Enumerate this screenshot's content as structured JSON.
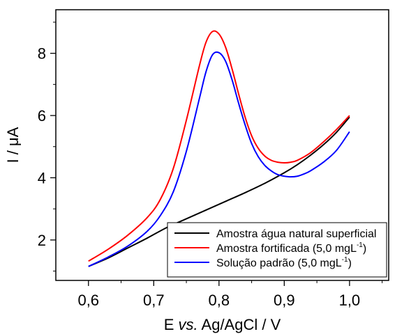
{
  "chart_data": {
    "type": "line",
    "xlabel_parts": [
      "E ",
      "vs.",
      " Ag/AgCl / V"
    ],
    "ylabel_parts": [
      "I / ",
      "μ",
      "A"
    ],
    "xlim": [
      0.55,
      1.06
    ],
    "ylim": [
      0.7,
      9.4
    ],
    "x_ticks": [
      0.6,
      0.7,
      0.8,
      0.9,
      1.0
    ],
    "x_tick_labels": [
      "0,6",
      "0,7",
      "0,8",
      "0,9",
      "1,0"
    ],
    "y_ticks": [
      2,
      4,
      6,
      8
    ],
    "y_tick_labels": [
      "2",
      "4",
      "6",
      "8"
    ],
    "grid": false,
    "legend_position": "bottom-right",
    "series": [
      {
        "name": "Amostra água natural superficial",
        "legend_main": "Amostra água natural superficial",
        "legend_sup": "",
        "legend_tail": "",
        "color": "#000000",
        "x": [
          0.6,
          0.63,
          0.66,
          0.69,
          0.72,
          0.75,
          0.78,
          0.81,
          0.84,
          0.87,
          0.9,
          0.92,
          0.94,
          0.96,
          0.98,
          1.0
        ],
        "y": [
          1.15,
          1.42,
          1.74,
          2.06,
          2.4,
          2.68,
          2.96,
          3.24,
          3.52,
          3.82,
          4.16,
          4.42,
          4.72,
          5.06,
          5.46,
          5.95
        ]
      },
      {
        "name": "Amostra fortificada (5,0 mgL-1)",
        "legend_main": "Amostra fortificada (5,0 mgL",
        "legend_sup": "-1",
        "legend_tail": ")",
        "color": "#ff0000",
        "x": [
          0.6,
          0.63,
          0.66,
          0.69,
          0.71,
          0.73,
          0.75,
          0.77,
          0.78,
          0.79,
          0.8,
          0.81,
          0.82,
          0.83,
          0.84,
          0.85,
          0.86,
          0.87,
          0.88,
          0.89,
          0.9,
          0.91,
          0.92,
          0.94,
          0.96,
          0.98,
          1.0
        ],
        "y": [
          1.32,
          1.7,
          2.15,
          2.72,
          3.3,
          4.3,
          5.85,
          7.6,
          8.35,
          8.7,
          8.62,
          8.2,
          7.5,
          6.7,
          5.95,
          5.35,
          4.95,
          4.7,
          4.56,
          4.5,
          4.48,
          4.5,
          4.56,
          4.8,
          5.15,
          5.55,
          6.0
        ]
      },
      {
        "name": "Solução padrão (5,0 mgL-1)",
        "legend_main": "Solução padrão (5,0 mgL",
        "legend_sup": "-1",
        "legend_tail": ")",
        "color": "#0000ff",
        "x": [
          0.6,
          0.63,
          0.66,
          0.69,
          0.71,
          0.73,
          0.75,
          0.77,
          0.78,
          0.79,
          0.8,
          0.81,
          0.82,
          0.83,
          0.84,
          0.85,
          0.86,
          0.87,
          0.88,
          0.89,
          0.9,
          0.91,
          0.92,
          0.93,
          0.94,
          0.96,
          0.98,
          1.0
        ],
        "y": [
          1.15,
          1.45,
          1.8,
          2.28,
          2.78,
          3.55,
          4.85,
          6.55,
          7.4,
          7.95,
          8.02,
          7.75,
          7.15,
          6.4,
          5.7,
          5.1,
          4.68,
          4.4,
          4.22,
          4.1,
          4.05,
          4.03,
          4.05,
          4.12,
          4.22,
          4.5,
          4.88,
          5.48
        ]
      }
    ]
  }
}
